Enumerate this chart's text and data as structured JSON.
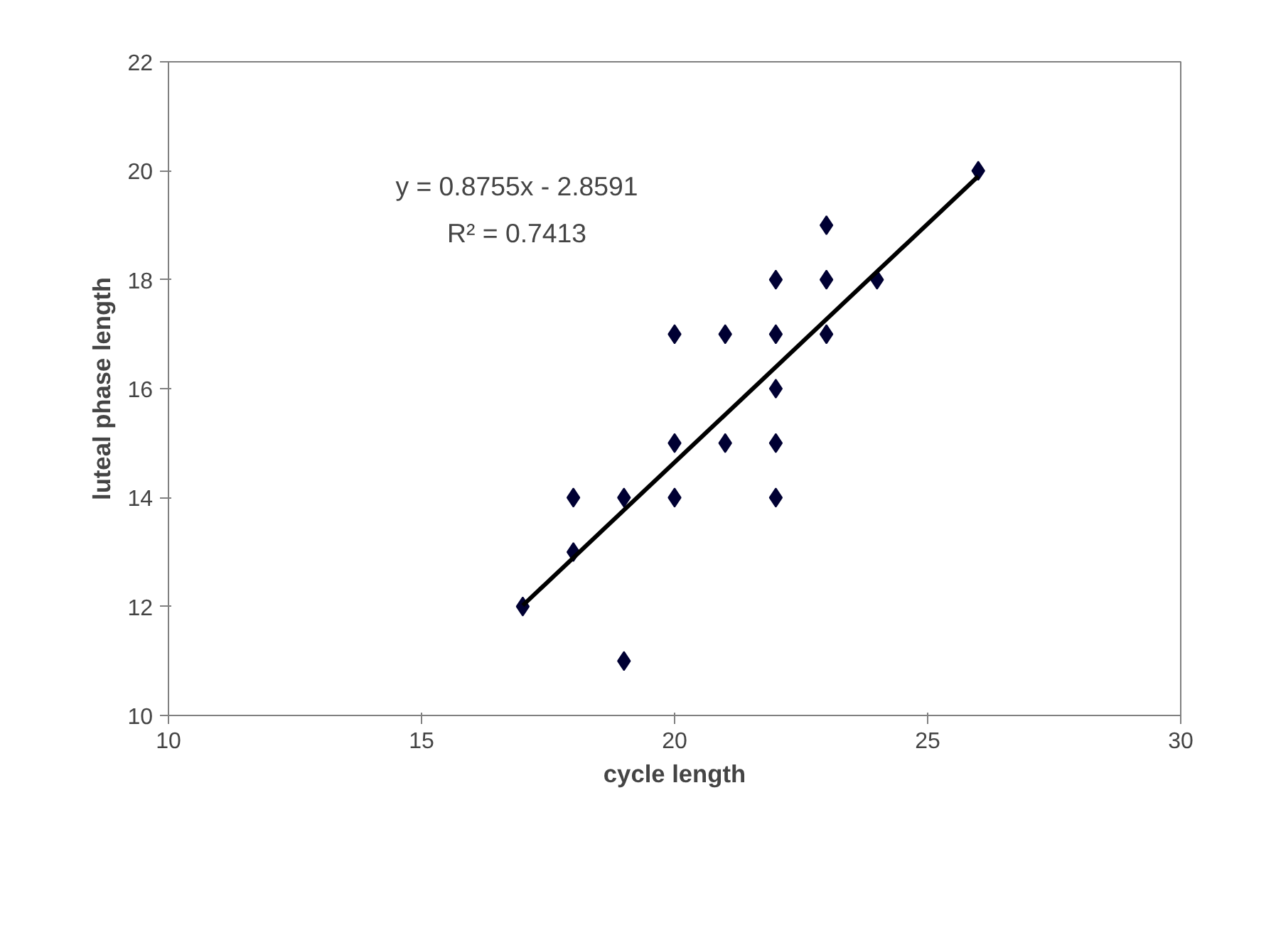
{
  "chart_data": {
    "type": "scatter",
    "xlabel": "cycle length",
    "ylabel": "luteal phase length",
    "xlim": [
      10,
      30
    ],
    "xticks": [
      10,
      15,
      20,
      25,
      30
    ],
    "ylim": [
      10,
      22
    ],
    "yticks": [
      10,
      12,
      14,
      16,
      18,
      20,
      22
    ],
    "grid": false,
    "annotations": [
      "y = 0.8755x - 2.8591",
      "R² = 0.7413"
    ],
    "series": [
      {
        "marker": "diamond",
        "color": "#000033",
        "x": [
          17,
          18,
          18,
          19,
          19,
          20,
          20,
          20,
          21,
          21,
          22,
          22,
          22,
          22,
          22,
          23,
          23,
          23,
          24,
          26
        ],
        "values": [
          12,
          13,
          14,
          11,
          14,
          14,
          15,
          17,
          15,
          17,
          14,
          15,
          16,
          17,
          18,
          17,
          18,
          19,
          18,
          20
        ]
      },
      {
        "type": "line",
        "marker": "none",
        "line_style": "solid",
        "color": "#000000",
        "x": [
          17,
          26
        ],
        "values": [
          12.02,
          19.9
        ]
      }
    ]
  }
}
